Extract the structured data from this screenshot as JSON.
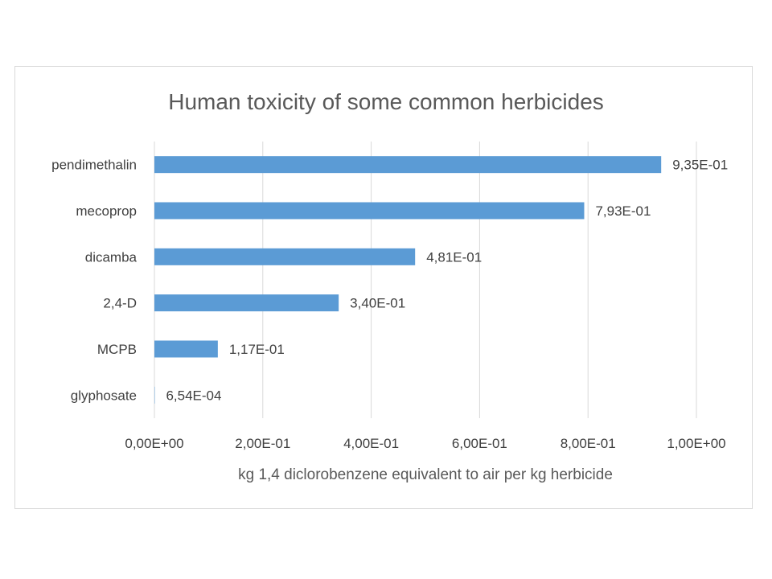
{
  "chart_data": {
    "type": "bar",
    "orientation": "horizontal",
    "title": "Human toxicity of some common herbicides",
    "xlabel": "kg 1,4 diclorobenzene equivalent to air per kg herbicide",
    "ylabel": "",
    "categories": [
      "pendimethalin",
      "mecoprop",
      "dicamba",
      "2,4-D",
      "MCPB",
      "glyphosate"
    ],
    "values": [
      0.935,
      0.793,
      0.481,
      0.34,
      0.117,
      0.000654
    ],
    "data_labels": [
      "9,35E-01",
      "7,93E-01",
      "4,81E-01",
      "3,40E-01",
      "1,17E-01",
      "6,54E-04"
    ],
    "xlim": [
      0,
      1
    ],
    "x_ticks": [
      0,
      0.2,
      0.4,
      0.6,
      0.8,
      1.0
    ],
    "x_tick_labels": [
      "0,00E+00",
      "2,00E-01",
      "4,00E-01",
      "6,00E-01",
      "8,00E-01",
      "1,00E+00"
    ],
    "grid": "vertical",
    "legend": "none",
    "bar_color": "#5b9bd5",
    "grid_color": "#d9d9d9"
  }
}
